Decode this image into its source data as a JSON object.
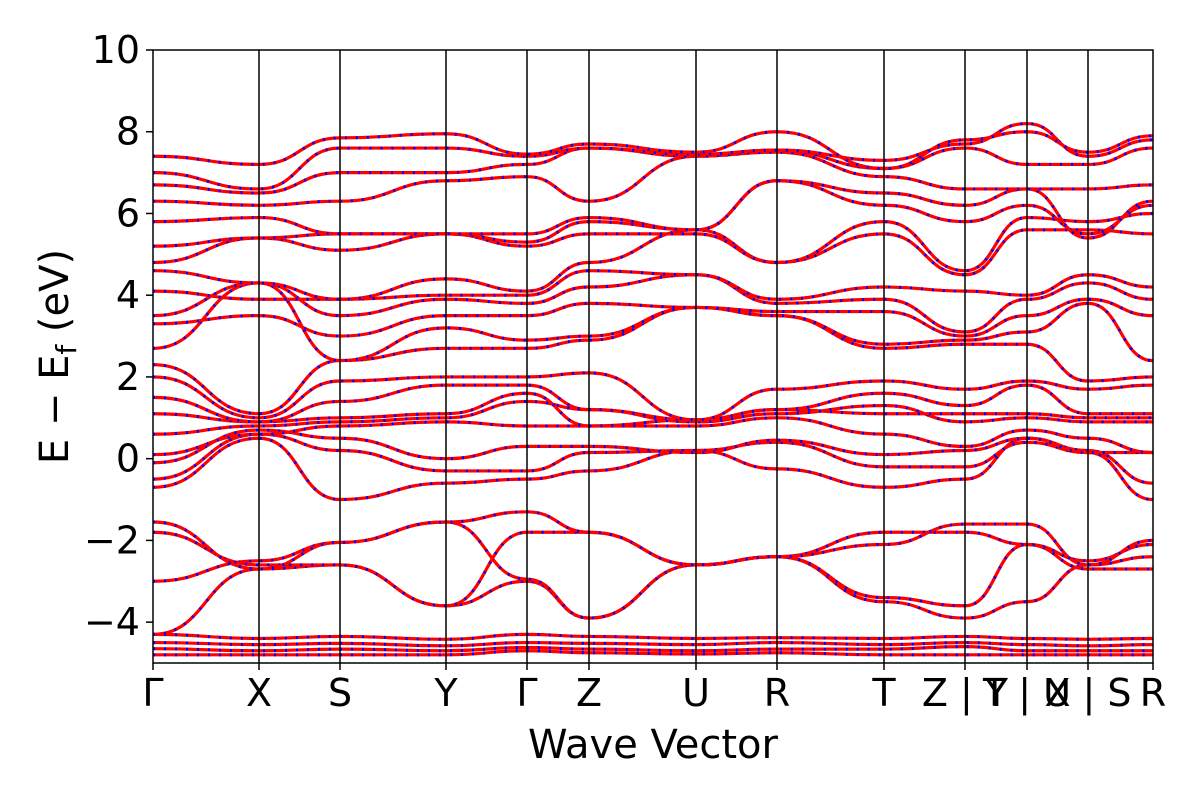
{
  "chart_data": {
    "type": "line",
    "xlabel": "Wave Vector",
    "ylabel": "E − Ef (eV)",
    "ylabel_parts": {
      "main": "E − E",
      "sub": "f",
      "unit": " (eV)"
    },
    "ylim": [
      -5,
      10
    ],
    "yticks": [
      {
        "value": -4,
        "label": "−4"
      },
      {
        "value": -2,
        "label": "−2"
      },
      {
        "value": 0,
        "label": "0"
      },
      {
        "value": 2,
        "label": "2"
      },
      {
        "value": 4,
        "label": "4"
      },
      {
        "value": 6,
        "label": "6"
      },
      {
        "value": 8,
        "label": "8"
      },
      {
        "value": 10,
        "label": "10"
      }
    ],
    "xlim": [
      0,
      1
    ],
    "high_symmetry_points": [
      {
        "label": "Γ",
        "x": 0.0
      },
      {
        "label": "X",
        "x": 0.106
      },
      {
        "label": "S",
        "x": 0.187
      },
      {
        "label": "Y",
        "x": 0.293
      },
      {
        "label": "Γ",
        "x": 0.374
      },
      {
        "label": "Z",
        "x": 0.436
      },
      {
        "label": "U",
        "x": 0.543
      },
      {
        "label": "R",
        "x": 0.624
      },
      {
        "label": "T",
        "x": 0.731
      },
      {
        "label": "Z | Y",
        "x": 0.812
      },
      {
        "label": "T | U",
        "x": 0.874
      },
      {
        "label": "X | S",
        "x": 0.935
      },
      {
        "label": "R",
        "x": 1.0
      }
    ],
    "series": [
      {
        "color": "#ff0000",
        "dash": "solid"
      },
      {
        "color": "#0000ff",
        "dash": "dotted"
      }
    ],
    "bands": [
      [
        -4.8,
        -4.8,
        -4.8,
        -4.8,
        -4.7,
        -4.75,
        -4.78,
        -4.75,
        -4.8,
        -4.8,
        -4.8,
        -4.8,
        -4.8,
        -4.8
      ],
      [
        -4.65,
        -4.7,
        -4.66,
        -4.7,
        -4.62,
        -4.66,
        -4.7,
        -4.66,
        -4.66,
        -4.6,
        -4.7,
        -4.7,
        -4.7,
        -4.7
      ],
      [
        -4.5,
        -4.55,
        -4.52,
        -4.58,
        -4.5,
        -4.52,
        -4.55,
        -4.5,
        -4.55,
        -4.5,
        -4.55,
        -4.58,
        -4.55,
        -4.55
      ],
      [
        -4.3,
        -4.4,
        -4.35,
        -4.42,
        -4.3,
        -4.35,
        -4.4,
        -4.38,
        -4.4,
        -4.35,
        -4.4,
        -4.42,
        -4.4,
        -4.4
      ],
      [
        -4.3,
        -2.7,
        -2.6,
        -3.6,
        -3.0,
        -3.9,
        -2.6,
        -2.4,
        -3.5,
        -3.9,
        -3.5,
        -2.6,
        -2.4,
        -2.35
      ],
      [
        -3.0,
        -2.5,
        -2.05,
        -1.55,
        -2.95,
        -3.9,
        -2.6,
        -2.4,
        -1.8,
        -1.8,
        -2.1,
        -2.5,
        -2.1,
        -2.35
      ],
      [
        -1.8,
        -2.6,
        -2.6,
        -3.6,
        -1.8,
        -1.8,
        -2.6,
        -2.4,
        -3.4,
        -3.6,
        -2.1,
        -2.7,
        -2.7,
        -2.4
      ],
      [
        -1.55,
        -2.7,
        -2.05,
        -1.55,
        -1.3,
        -1.8,
        -2.6,
        -2.4,
        -2.1,
        -1.6,
        -1.6,
        -2.6,
        -2.0,
        -2.35
      ],
      [
        -0.7,
        0.5,
        -1.0,
        -0.6,
        -0.5,
        -0.3,
        0.2,
        -0.25,
        -0.7,
        -0.5,
        0.5,
        0.2,
        -0.6,
        -0.25
      ],
      [
        -0.5,
        0.6,
        0.2,
        -0.3,
        -0.3,
        0.15,
        0.2,
        0.4,
        -0.2,
        -0.2,
        0.4,
        0.15,
        -1.0,
        -0.25
      ],
      [
        -0.1,
        0.7,
        0.5,
        0.0,
        0.3,
        0.3,
        0.15,
        0.45,
        0.1,
        0.2,
        0.5,
        0.15,
        0.15,
        0.9
      ],
      [
        0.1,
        0.6,
        0.8,
        0.9,
        0.8,
        0.8,
        0.8,
        1.0,
        0.6,
        0.3,
        0.7,
        0.5,
        0.15,
        0.9
      ],
      [
        0.6,
        0.8,
        0.9,
        1.0,
        1.4,
        1.2,
        0.9,
        1.1,
        1.3,
        0.9,
        1.0,
        0.9,
        0.9,
        1.0
      ],
      [
        1.1,
        0.9,
        1.0,
        1.1,
        1.6,
        0.8,
        0.95,
        1.2,
        1.1,
        1.1,
        1.1,
        1.0,
        1.0,
        1.1
      ],
      [
        1.5,
        0.9,
        1.4,
        1.8,
        1.8,
        1.2,
        0.95,
        1.2,
        1.6,
        1.3,
        1.8,
        1.1,
        1.1,
        1.15
      ],
      [
        2.0,
        1.0,
        1.9,
        2.0,
        2.0,
        2.1,
        0.95,
        1.7,
        1.9,
        1.7,
        1.9,
        1.7,
        1.8,
        1.2
      ],
      [
        2.3,
        1.1,
        2.4,
        2.7,
        2.7,
        2.9,
        3.7,
        3.5,
        2.7,
        2.8,
        2.8,
        1.9,
        2.0,
        2.4
      ],
      [
        2.7,
        4.3,
        2.4,
        3.2,
        2.9,
        3.0,
        3.7,
        3.5,
        2.8,
        2.9,
        3.1,
        3.8,
        2.4,
        3.5
      ],
      [
        3.3,
        3.5,
        3.0,
        3.5,
        3.5,
        3.8,
        3.7,
        3.6,
        3.6,
        3.0,
        3.5,
        3.9,
        3.5,
        3.6
      ],
      [
        3.5,
        4.3,
        3.5,
        3.9,
        3.8,
        4.2,
        4.5,
        3.8,
        3.9,
        3.1,
        3.9,
        4.3,
        3.9,
        3.9
      ],
      [
        4.1,
        3.9,
        3.9,
        4.0,
        4.0,
        4.6,
        4.5,
        3.9,
        4.2,
        4.1,
        4.0,
        4.5,
        4.2,
        4.0
      ],
      [
        4.6,
        4.3,
        3.9,
        4.4,
        4.1,
        4.8,
        5.6,
        4.8,
        5.5,
        4.5,
        5.6,
        5.6,
        5.5,
        4.8
      ],
      [
        4.8,
        5.4,
        5.1,
        5.5,
        5.2,
        5.5,
        5.5,
        4.8,
        5.8,
        4.6,
        5.9,
        5.8,
        6.0,
        4.8
      ],
      [
        5.2,
        5.4,
        5.5,
        5.5,
        5.3,
        5.8,
        5.6,
        6.8,
        6.2,
        5.8,
        6.2,
        5.5,
        6.2,
        6.8
      ],
      [
        5.8,
        5.9,
        5.5,
        5.5,
        5.5,
        5.9,
        5.6,
        6.8,
        6.5,
        6.2,
        6.6,
        5.4,
        6.3,
        6.9
      ],
      [
        6.3,
        6.2,
        6.3,
        6.8,
        6.9,
        6.3,
        7.4,
        7.5,
        6.9,
        6.6,
        6.6,
        6.6,
        6.7,
        7.5
      ],
      [
        6.7,
        6.5,
        7.0,
        7.0,
        7.2,
        7.6,
        7.4,
        7.55,
        7.1,
        7.6,
        7.2,
        7.2,
        7.6,
        7.6
      ],
      [
        7.0,
        6.6,
        7.6,
        7.6,
        7.4,
        7.6,
        7.45,
        7.55,
        7.3,
        7.7,
        8.2,
        7.4,
        7.8,
        7.6
      ],
      [
        7.4,
        7.2,
        7.85,
        7.95,
        7.45,
        7.7,
        7.5,
        8.0,
        7.1,
        7.8,
        8.0,
        7.5,
        7.9,
        7.7
      ]
    ]
  }
}
